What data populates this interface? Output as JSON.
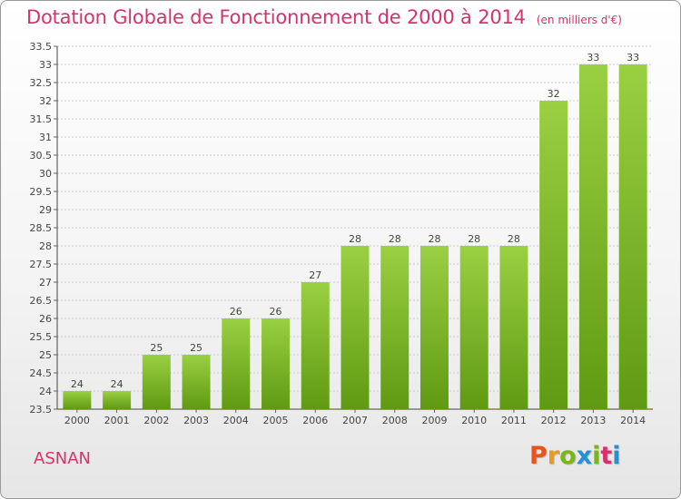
{
  "header": {
    "title": "Dotation Globale de Fonctionnement de 2000 à 2014",
    "unit": "(en milliers d'€)"
  },
  "footer": {
    "place": "ASNAN",
    "logo": [
      "P",
      "r",
      "o",
      "x",
      "i",
      "t",
      "i"
    ]
  },
  "colors": {
    "bar_light": "#9ad042",
    "bar_dark": "#5f9a12",
    "title": "#d6336c",
    "grid": "#cccccc",
    "logo": [
      "#e8541c",
      "#e89a1c",
      "#7ab51d",
      "#2a8fd0",
      "#7ab51d",
      "#d6336c",
      "#2a8fd0"
    ]
  },
  "chart_data": {
    "type": "bar",
    "title": "Dotation Globale de Fonctionnement de 2000 à 2014",
    "subtitle": "(en milliers d'€)",
    "categories": [
      "2000",
      "2001",
      "2002",
      "2003",
      "2004",
      "2005",
      "2006",
      "2007",
      "2008",
      "2009",
      "2010",
      "2011",
      "2012",
      "2013",
      "2014"
    ],
    "values": [
      24,
      24,
      25,
      25,
      26,
      26,
      27,
      28,
      28,
      28,
      28,
      28,
      32,
      33,
      33
    ],
    "ylim": [
      23.5,
      33.5
    ],
    "yticks": [
      23.5,
      24,
      24.5,
      25,
      25.5,
      26,
      26.5,
      27,
      27.5,
      28,
      28.5,
      29,
      29.5,
      30,
      30.5,
      31,
      31.5,
      32,
      32.5,
      33,
      33.5
    ],
    "grid": true
  }
}
